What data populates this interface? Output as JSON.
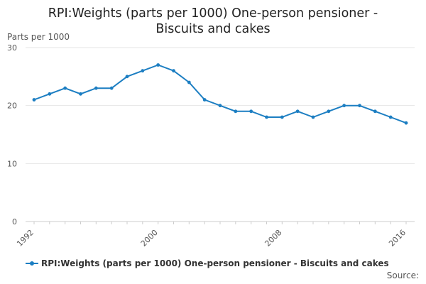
{
  "chart_data": {
    "type": "line",
    "title": "RPI:Weights (parts per 1000) One-person pensioner - Biscuits and cakes",
    "title_lines": [
      "RPI:Weights (parts per 1000) One-person pensioner -",
      "Biscuits and cakes"
    ],
    "ylabel": "Parts per 1000",
    "xlabel": "",
    "ylim": [
      0,
      30
    ],
    "yticks": [
      0,
      10,
      20,
      30
    ],
    "xlim": [
      1992,
      2016
    ],
    "xticks": [
      1992,
      2000,
      2008,
      2016
    ],
    "grid": true,
    "legend_position": "bottom",
    "series": [
      {
        "name": "RPI:Weights (parts per 1000) One-person pensioner - Biscuits and cakes",
        "color": "#1c7ec2",
        "x": [
          1992,
          1993,
          1994,
          1995,
          1996,
          1997,
          1998,
          1999,
          2000,
          2001,
          2002,
          2003,
          2004,
          2005,
          2006,
          2007,
          2008,
          2009,
          2010,
          2011,
          2012,
          2013,
          2014,
          2015,
          2016
        ],
        "values": [
          21,
          22,
          23,
          22,
          23,
          23,
          25,
          26,
          27,
          26,
          24,
          21,
          20,
          19,
          19,
          18,
          18,
          19,
          18,
          19,
          20,
          20,
          19,
          18,
          17
        ]
      }
    ],
    "source_label": "Source:"
  }
}
